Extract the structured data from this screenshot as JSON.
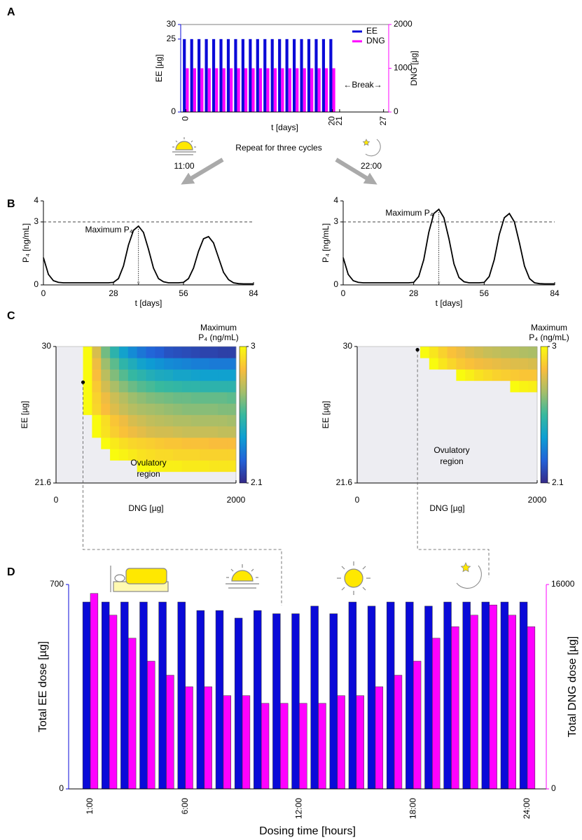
{
  "schedule": {
    "text": "Repeat for three cycles",
    "times": [
      "11:00",
      "22:00"
    ]
  },
  "chart_data": [
    {
      "type": "bar",
      "panel": "A",
      "xlabel": "t [days]",
      "ylabel": "EE [µg]",
      "y2label": "DNG [µg]",
      "x": [
        0,
        1,
        2,
        3,
        4,
        5,
        6,
        7,
        8,
        9,
        10,
        11,
        12,
        13,
        14,
        15,
        16,
        17,
        18,
        19,
        20
      ],
      "xlim": [
        -0.7,
        27.7
      ],
      "xticks": [
        0,
        20,
        21,
        27
      ],
      "ylim": [
        0,
        30
      ],
      "yticks": [
        0,
        25,
        30
      ],
      "y2lim": [
        0,
        2000
      ],
      "y2ticks": [
        0,
        1000,
        2000
      ],
      "legend": "upper right",
      "annotations": [
        "←Break→"
      ],
      "series": [
        {
          "name": "EE",
          "color": "#0a0ad8",
          "values": [
            25,
            25,
            25,
            25,
            25,
            25,
            25,
            25,
            25,
            25,
            25,
            25,
            25,
            25,
            25,
            25,
            25,
            25,
            25,
            25,
            25
          ]
        },
        {
          "name": "DNG",
          "color": "#ff00ff",
          "axis": "y2",
          "values": [
            1000,
            1000,
            1000,
            1000,
            1000,
            1000,
            1000,
            1000,
            1000,
            1000,
            1000,
            1000,
            1000,
            1000,
            1000,
            1000,
            1000,
            1000,
            1000,
            1000,
            1000
          ]
        }
      ]
    },
    {
      "type": "line",
      "panel": "B",
      "xlabel": "t [days]",
      "ylabel": "P₄ [ng/mL]",
      "annotation": "Maximum P₄",
      "color": "#000000",
      "reference_line": 3,
      "xlim": [
        0,
        84
      ],
      "xticks": [
        0,
        28,
        56,
        84
      ],
      "ylim": [
        0,
        4
      ],
      "yticks": [
        0,
        3,
        4
      ],
      "x": [
        0,
        2,
        4,
        6,
        8,
        10,
        12,
        14,
        16,
        18,
        20,
        22,
        24,
        26,
        28,
        30,
        32,
        34,
        36,
        38,
        40,
        42,
        44,
        46,
        48,
        50,
        52,
        54,
        56,
        58,
        60,
        62,
        64,
        66,
        68,
        70,
        72,
        74,
        76,
        78,
        80,
        82,
        84
      ],
      "values": [
        1.3,
        0.5,
        0.2,
        0.12,
        0.1,
        0.1,
        0.1,
        0.1,
        0.1,
        0.1,
        0.1,
        0.1,
        0.1,
        0.1,
        0.12,
        0.3,
        0.9,
        1.9,
        2.6,
        2.8,
        2.5,
        1.7,
        0.8,
        0.3,
        0.15,
        0.1,
        0.1,
        0.1,
        0.12,
        0.3,
        0.8,
        1.6,
        2.2,
        2.3,
        2.0,
        1.3,
        0.6,
        0.25,
        0.1,
        0.06,
        0.05,
        0.05,
        0.05
      ]
    },
    {
      "type": "line",
      "xlabel": "t [days]",
      "ylabel": "P₄ [ng/mL]",
      "annotation": "Maximum P₄",
      "color": "#000000",
      "reference_line": 3,
      "xlim": [
        0,
        84
      ],
      "xticks": [
        0,
        28,
        56,
        84
      ],
      "ylim": [
        0,
        4
      ],
      "yticks": [
        0,
        3,
        4
      ],
      "x": [
        0,
        2,
        4,
        6,
        8,
        10,
        12,
        14,
        16,
        18,
        20,
        22,
        24,
        26,
        28,
        30,
        32,
        34,
        36,
        38,
        40,
        42,
        44,
        46,
        48,
        50,
        52,
        54,
        56,
        58,
        60,
        62,
        64,
        66,
        68,
        70,
        72,
        74,
        76,
        78,
        80,
        82,
        84
      ],
      "values": [
        1.3,
        0.5,
        0.2,
        0.12,
        0.1,
        0.1,
        0.1,
        0.1,
        0.1,
        0.1,
        0.1,
        0.1,
        0.1,
        0.1,
        0.12,
        0.4,
        1.2,
        2.5,
        3.4,
        3.6,
        3.2,
        2.2,
        1.0,
        0.35,
        0.15,
        0.1,
        0.1,
        0.1,
        0.12,
        0.4,
        1.2,
        2.4,
        3.2,
        3.4,
        3.0,
        2.0,
        0.9,
        0.3,
        0.1,
        0.06,
        0.05,
        0.05,
        0.05
      ]
    },
    {
      "type": "heatmap",
      "panel": "C",
      "xlabel": "DNG [µg]",
      "ylabel": "EE [µg]",
      "colorbar_label": [
        "Maximum",
        "P₄ (ng/mL)"
      ],
      "region_label": [
        "Ovulatory",
        "region"
      ],
      "xlim": [
        0,
        2000
      ],
      "xticks": [
        0,
        2000
      ],
      "ylim": [
        21.6,
        30
      ],
      "yticks": [
        30,
        21.6
      ],
      "clim": [
        2.1,
        3
      ],
      "cticks": [
        3,
        2.1
      ],
      "colormap": [
        "#352a87",
        "#2262d8",
        "#0d9fd3",
        "#38b99e",
        "#a5be6a",
        "#f9bd3c",
        "#f9fb0e"
      ],
      "nan_color": "#ededf2",
      "marker": {
        "x": 300,
        "y": 27.8
      },
      "xbins": [
        0,
        100,
        200,
        300,
        400,
        500,
        600,
        700,
        800,
        900,
        1000,
        1100,
        1200,
        1300,
        1400,
        1500,
        1600,
        1700,
        1800,
        1900,
        2000
      ],
      "ybins": [
        21.6,
        22.3,
        23,
        23.7,
        24.4,
        25.1,
        25.8,
        26.5,
        27.2,
        27.9,
        28.6,
        29.3,
        30
      ],
      "values": [
        [
          null,
          null,
          null,
          null,
          null,
          null,
          null,
          null,
          null,
          null,
          null,
          null,
          null,
          null,
          null,
          null,
          null,
          null,
          null,
          null
        ],
        [
          null,
          null,
          null,
          null,
          null,
          null,
          null,
          null,
          null,
          3,
          2.99,
          2.98,
          2.97,
          2.97,
          2.96,
          2.96,
          2.96,
          2.95,
          2.95,
          2.95
        ],
        [
          null,
          null,
          null,
          null,
          null,
          null,
          3,
          2.98,
          2.96,
          2.94,
          2.93,
          2.92,
          2.92,
          2.91,
          2.91,
          2.91,
          2.9,
          2.9,
          2.9,
          2.9
        ],
        [
          null,
          null,
          null,
          null,
          null,
          3,
          2.96,
          2.93,
          2.91,
          2.9,
          2.89,
          2.88,
          2.87,
          2.87,
          2.86,
          2.86,
          2.86,
          2.85,
          2.85,
          2.85
        ],
        [
          null,
          null,
          null,
          null,
          3,
          2.94,
          2.89,
          2.86,
          2.83,
          2.81,
          2.79,
          2.78,
          2.78,
          2.77,
          2.76,
          2.76,
          2.76,
          2.76,
          2.75,
          2.75
        ],
        [
          null,
          null,
          null,
          null,
          3,
          2.93,
          2.87,
          2.83,
          2.79,
          2.77,
          2.75,
          2.74,
          2.73,
          2.72,
          2.72,
          2.71,
          2.71,
          2.71,
          2.71,
          2.7
        ],
        [
          null,
          null,
          null,
          3,
          2.91,
          2.85,
          2.8,
          2.76,
          2.73,
          2.71,
          2.7,
          2.69,
          2.68,
          2.67,
          2.66,
          2.66,
          2.66,
          2.66,
          2.65,
          2.65
        ],
        [
          null,
          null,
          null,
          3,
          2.9,
          2.83,
          2.77,
          2.73,
          2.69,
          2.67,
          2.65,
          2.64,
          2.63,
          2.62,
          2.62,
          2.61,
          2.61,
          2.61,
          2.61,
          2.6
        ],
        [
          null,
          null,
          null,
          3,
          2.88,
          2.78,
          2.71,
          2.66,
          2.62,
          2.59,
          2.57,
          2.55,
          2.54,
          2.53,
          2.52,
          2.52,
          2.51,
          2.51,
          2.51,
          2.51
        ],
        [
          null,
          null,
          null,
          3,
          2.85,
          2.74,
          2.65,
          2.59,
          2.54,
          2.51,
          2.48,
          2.46,
          2.45,
          2.43,
          2.43,
          2.42,
          2.41,
          2.41,
          2.41,
          2.41
        ],
        [
          null,
          null,
          null,
          3,
          2.83,
          2.69,
          2.6,
          2.52,
          2.47,
          2.42,
          2.39,
          2.37,
          2.35,
          2.34,
          2.33,
          2.32,
          2.32,
          2.31,
          2.31,
          2.31
        ],
        [
          null,
          null,
          null,
          3,
          2.79,
          2.63,
          2.51,
          2.42,
          2.35,
          2.3,
          2.26,
          2.24,
          2.21,
          2.2,
          2.19,
          2.18,
          2.17,
          2.17,
          2.16,
          2.16
        ]
      ]
    },
    {
      "type": "heatmap",
      "xlabel": "DNG [µg]",
      "ylabel": "EE [µg]",
      "colorbar_label": [
        "Maximum",
        "P₄ (ng/mL)"
      ],
      "region_label": [
        "Ovulatory",
        "region"
      ],
      "xlim": [
        0,
        2000
      ],
      "xticks": [
        0,
        2000
      ],
      "ylim": [
        21.6,
        30
      ],
      "yticks": [
        30,
        21.6
      ],
      "clim": [
        2.1,
        3
      ],
      "cticks": [
        3,
        2.1
      ],
      "colormap": [
        "#352a87",
        "#2262d8",
        "#0d9fd3",
        "#38b99e",
        "#a5be6a",
        "#f9bd3c",
        "#f9fb0e"
      ],
      "nan_color": "#ededf2",
      "marker": {
        "x": 670,
        "y": 29.8
      },
      "xbins": [
        0,
        100,
        200,
        300,
        400,
        500,
        600,
        700,
        800,
        900,
        1000,
        1100,
        1200,
        1300,
        1400,
        1500,
        1600,
        1700,
        1800,
        1900,
        2000
      ],
      "ybins": [
        21.6,
        22.3,
        23,
        23.7,
        24.4,
        25.1,
        25.8,
        26.5,
        27.2,
        27.9,
        28.6,
        29.3,
        30
      ],
      "values": [
        [
          null,
          null,
          null,
          null,
          null,
          null,
          null,
          null,
          null,
          null,
          null,
          null,
          null,
          null,
          null,
          null,
          null,
          null,
          null,
          null
        ],
        [
          null,
          null,
          null,
          null,
          null,
          null,
          null,
          null,
          null,
          null,
          null,
          null,
          null,
          null,
          null,
          null,
          null,
          null,
          null,
          null
        ],
        [
          null,
          null,
          null,
          null,
          null,
          null,
          null,
          null,
          null,
          null,
          null,
          null,
          null,
          null,
          null,
          null,
          null,
          null,
          null,
          null
        ],
        [
          null,
          null,
          null,
          null,
          null,
          null,
          null,
          null,
          null,
          null,
          null,
          null,
          null,
          null,
          null,
          null,
          null,
          null,
          null,
          null
        ],
        [
          null,
          null,
          null,
          null,
          null,
          null,
          null,
          null,
          null,
          null,
          null,
          null,
          null,
          null,
          null,
          null,
          null,
          null,
          null,
          null
        ],
        [
          null,
          null,
          null,
          null,
          null,
          null,
          null,
          null,
          null,
          null,
          null,
          null,
          null,
          null,
          null,
          null,
          null,
          null,
          null,
          null
        ],
        [
          null,
          null,
          null,
          null,
          null,
          null,
          null,
          null,
          null,
          null,
          null,
          null,
          null,
          null,
          null,
          null,
          null,
          null,
          null,
          null
        ],
        [
          null,
          null,
          null,
          null,
          null,
          null,
          null,
          null,
          null,
          null,
          null,
          null,
          null,
          null,
          null,
          null,
          null,
          null,
          null,
          null
        ],
        [
          null,
          null,
          null,
          null,
          null,
          null,
          null,
          null,
          null,
          null,
          null,
          null,
          null,
          null,
          null,
          null,
          null,
          3,
          2.98,
          2.97
        ],
        [
          null,
          null,
          null,
          null,
          null,
          null,
          null,
          null,
          null,
          null,
          null,
          3,
          2.97,
          2.94,
          2.92,
          2.9,
          2.89,
          2.88,
          2.87,
          2.87
        ],
        [
          null,
          null,
          null,
          null,
          null,
          null,
          null,
          null,
          3,
          2.95,
          2.91,
          2.88,
          2.86,
          2.84,
          2.83,
          2.82,
          2.81,
          2.8,
          2.8,
          2.79
        ],
        [
          null,
          null,
          null,
          null,
          null,
          null,
          null,
          3,
          2.95,
          2.9,
          2.86,
          2.83,
          2.8,
          2.78,
          2.76,
          2.75,
          2.74,
          2.73,
          2.72,
          2.71
        ]
      ]
    },
    {
      "type": "bar",
      "panel": "D",
      "xlabel": "Dosing time [hours]",
      "ylabel": "Total EE dose [µg]",
      "y2label": "Total DNG dose [µg]",
      "categories": [
        "1:00",
        null,
        null,
        null,
        null,
        "6:00",
        null,
        null,
        null,
        null,
        null,
        "12:00",
        null,
        null,
        null,
        null,
        null,
        "18:00",
        null,
        null,
        null,
        null,
        null,
        "24:00"
      ],
      "ylim": [
        0,
        700
      ],
      "yticks": [
        0,
        700
      ],
      "y2lim": [
        0,
        16000
      ],
      "y2ticks": [
        0,
        16000
      ],
      "series": [
        {
          "name": "Total EE dose",
          "color": "#0a0ad8",
          "values": [
            640,
            640,
            640,
            640,
            640,
            640,
            611,
            611,
            585,
            611,
            600,
            600,
            626,
            600,
            640,
            626,
            640,
            640,
            626,
            640,
            640,
            640,
            640,
            640
          ]
        },
        {
          "name": "Total DNG dose",
          "color": "#ff00ff",
          "axis": "y2",
          "values": [
            15300,
            13600,
            11800,
            10000,
            8900,
            8000,
            8000,
            7300,
            7300,
            6700,
            6700,
            6700,
            6700,
            7300,
            7300,
            8000,
            8900,
            10000,
            11800,
            12700,
            13600,
            14400,
            13600,
            12700
          ]
        }
      ]
    }
  ]
}
